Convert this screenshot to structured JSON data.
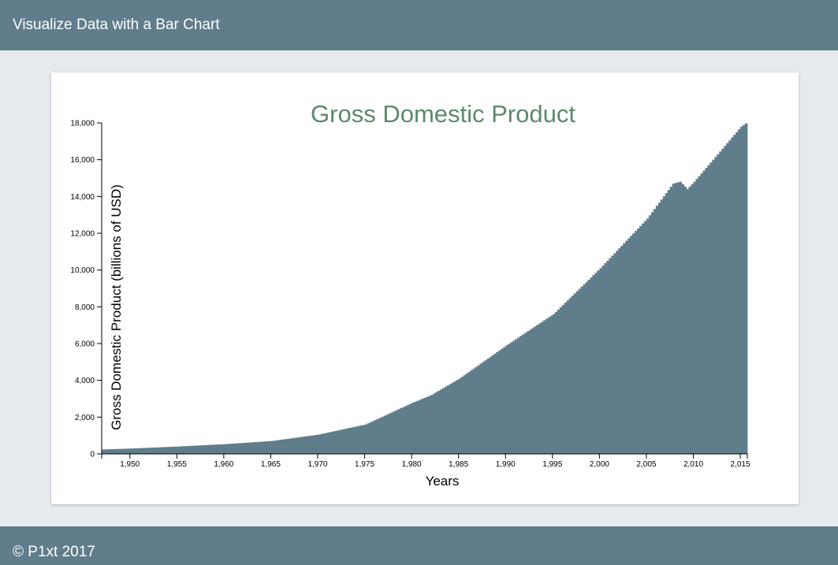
{
  "header": {
    "title": "Visualize Data with a Bar Chart"
  },
  "footer": {
    "text": "© P1xt 2017"
  },
  "colors": {
    "bar": "#607d8b",
    "title": "#5a8a6e",
    "header_bg": "#607d8b",
    "page_bg": "#e7ebee"
  },
  "chart_data": {
    "type": "bar",
    "title": "Gross Domestic Product",
    "xlabel": "Years",
    "ylabel": "Gross Domestic Product (billions of USD)",
    "xlim": [
      1947,
      2015.75
    ],
    "ylim": [
      0,
      18000
    ],
    "x_ticks": [
      1950,
      1955,
      1960,
      1965,
      1970,
      1975,
      1980,
      1985,
      1990,
      1995,
      2000,
      2005,
      2010,
      2015
    ],
    "x_tick_labels": [
      "1,950",
      "1,955",
      "1,960",
      "1,965",
      "1,970",
      "1,975",
      "1,980",
      "1,985",
      "1,990",
      "1,995",
      "2,000",
      "2,005",
      "2,010",
      "2,015"
    ],
    "y_ticks": [
      0,
      2000,
      4000,
      6000,
      8000,
      10000,
      12000,
      14000,
      16000,
      18000
    ],
    "y_tick_labels": [
      "0",
      "2,000",
      "4,000",
      "6,000",
      "8,000",
      "10,000",
      "12,000",
      "14,000",
      "16,000",
      "18,000"
    ],
    "grid": false,
    "bar_frequency": "quarterly",
    "anchors": {
      "years": [
        1947,
        1950,
        1955,
        1960,
        1965,
        1970,
        1975,
        1980,
        1982,
        1985,
        1990,
        1995,
        2000,
        2005,
        2007.75,
        2008.5,
        2009.25,
        2010,
        2015,
        2015.75
      ],
      "values": [
        240,
        290,
        400,
        530,
        700,
        1050,
        1600,
        2780,
        3200,
        4100,
        5900,
        7600,
        10100,
        12800,
        14700,
        14800,
        14400,
        14800,
        17800,
        18060
      ]
    }
  }
}
